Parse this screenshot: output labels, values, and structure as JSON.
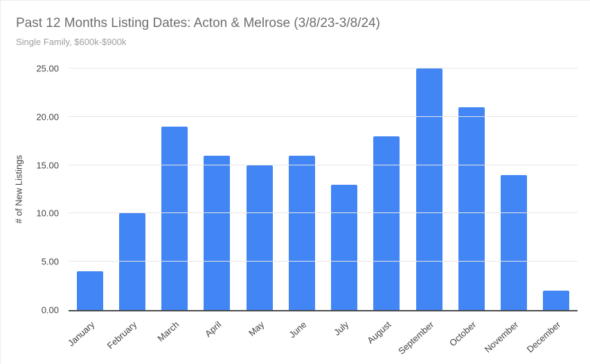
{
  "chart_data": {
    "type": "bar",
    "title": "Past 12 Months Listing Dates: Acton & Melrose (3/8/23-3/8/24)",
    "subtitle": "Single Family, $600k-$900k",
    "categories": [
      "January",
      "February",
      "March",
      "April",
      "May",
      "June",
      "July",
      "August",
      "September",
      "October",
      "November",
      "December"
    ],
    "values": [
      4,
      10,
      19,
      16,
      15,
      16,
      13,
      18,
      25,
      21,
      14,
      2
    ],
    "series_name": "# of New Listings",
    "xlabel": "",
    "ylabel": "# of New Listings",
    "ylim": [
      0,
      25
    ],
    "yticks": [
      0,
      5,
      10,
      15,
      20,
      25
    ],
    "ytick_labels": [
      "0.00",
      "5.00",
      "10.00",
      "15.00",
      "20.00",
      "25.00"
    ],
    "grid": true,
    "legend": "none",
    "colors": {
      "bar": "#4285F4",
      "title_text": "#6e6e6e",
      "subtitle_text": "#9e9e9e",
      "axis_text": "#424242",
      "gridline": "#e6e6e6",
      "baseline": "#4a4a4a",
      "background": "#ffffff"
    }
  }
}
